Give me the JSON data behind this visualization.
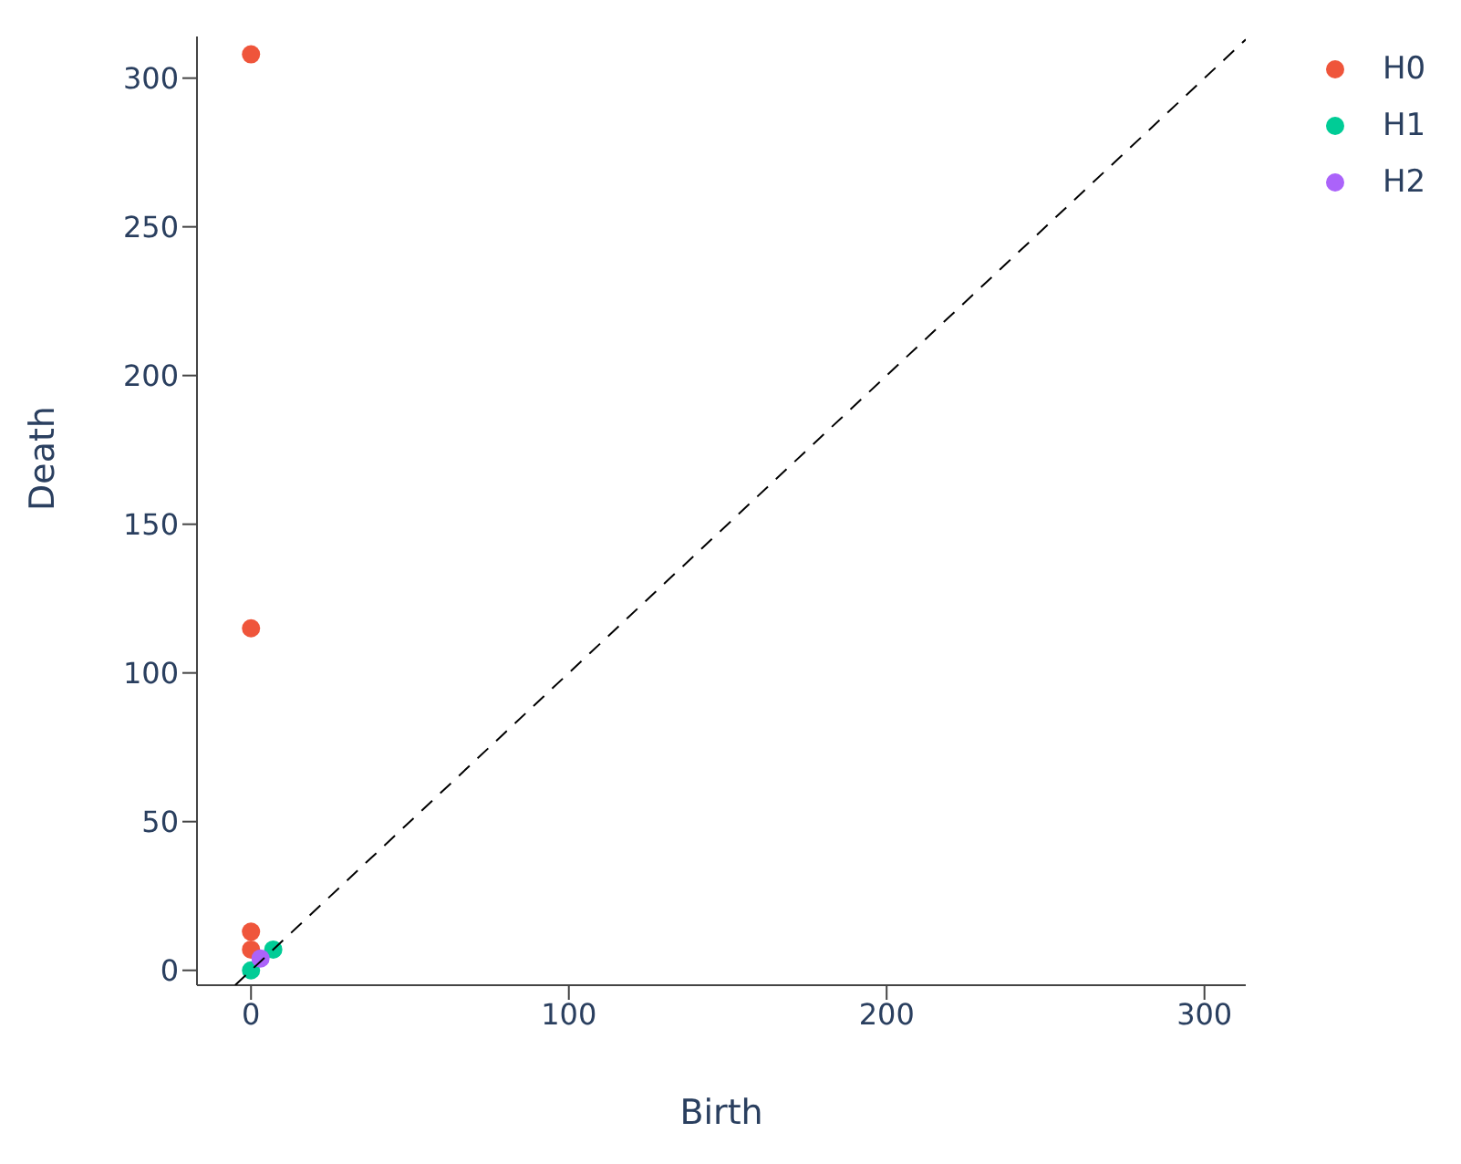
{
  "chart_data": {
    "type": "scatter",
    "xlabel": "Birth",
    "ylabel": "Death",
    "xlim": [
      -17,
      313
    ],
    "ylim": [
      -5,
      314
    ],
    "xticks": [
      0,
      100,
      200,
      300
    ],
    "yticks": [
      0,
      50,
      100,
      150,
      200,
      250,
      300
    ],
    "grid": false,
    "legend": "top right",
    "marker": "circle",
    "series": [
      {
        "name": "H0",
        "color": "#ef553b",
        "x": [
          0,
          0,
          0,
          0
        ],
        "values": [
          308,
          115,
          13,
          7
        ]
      },
      {
        "name": "H1",
        "color": "#00cc96",
        "x": [
          0,
          7
        ],
        "values": [
          0,
          7
        ]
      },
      {
        "name": "H2",
        "color": "#ab63fa",
        "x": [
          3
        ],
        "values": [
          4
        ]
      },
      {
        "type": "line",
        "color": "#000000",
        "line_style": "dashed",
        "marker": "none",
        "x": [
          -5,
          313
        ],
        "values": [
          -5,
          313
        ]
      }
    ]
  }
}
